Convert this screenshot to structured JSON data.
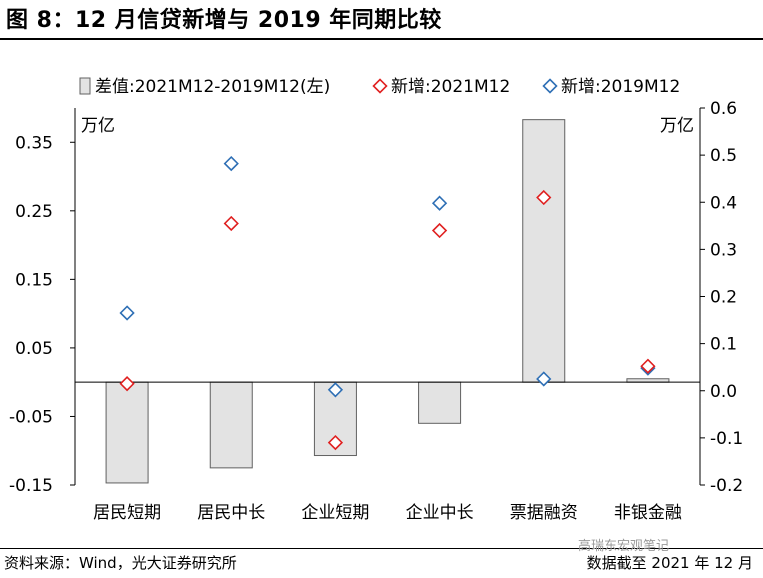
{
  "title": "图 8：12 月信贷新增与 2019 年同期比较",
  "source": "资料来源：Wind，光大证券研究所",
  "cutoff": "数据截至 2021 年 12 月",
  "watermark": "高瑞东宏观笔记",
  "colors": {
    "bar_fill": "#e3e3e3",
    "bar_stroke": "#606060",
    "series_2021": "#e02020",
    "series_2019": "#2e6fb5"
  },
  "chart_data": {
    "type": "bar",
    "categories": [
      "居民短期",
      "居民中长",
      "企业短期",
      "企业中长",
      "票据融资",
      "非银金融"
    ],
    "series": [
      {
        "name": "差值:2021M12-2019M12(左)",
        "type": "bar",
        "axis": "left",
        "marker": "rect",
        "values": [
          -0.147,
          -0.125,
          -0.107,
          -0.06,
          0.383,
          0.005
        ]
      },
      {
        "name": "新增:2021M12",
        "type": "scatter",
        "axis": "right",
        "marker": "diamond",
        "color": "#e02020",
        "values": [
          0.015,
          0.355,
          -0.11,
          0.34,
          0.41,
          0.052
        ]
      },
      {
        "name": "新增:2019M12",
        "type": "scatter",
        "axis": "right",
        "marker": "diamond",
        "color": "#2e6fb5",
        "values": [
          0.165,
          0.482,
          0.002,
          0.398,
          0.025,
          0.048
        ]
      }
    ],
    "left_axis": {
      "unit": "万亿",
      "min": -0.15,
      "max": 0.4,
      "ticks": [
        -0.15,
        -0.05,
        0.05,
        0.15,
        0.25,
        0.35
      ],
      "tick_labels": [
        "-0.15",
        "-0.05",
        "0.05",
        "0.15",
        "0.25",
        "0.35"
      ]
    },
    "right_axis": {
      "unit": "万亿",
      "min": -0.2,
      "max": 0.6,
      "ticks": [
        -0.2,
        -0.1,
        0.0,
        0.1,
        0.2,
        0.3,
        0.4,
        0.5,
        0.6
      ],
      "tick_labels": [
        "-0.2",
        "-0.1",
        "0.0",
        "0.1",
        "0.2",
        "0.3",
        "0.4",
        "0.5",
        "0.6"
      ]
    },
    "legend_position": "top",
    "grid": false
  }
}
